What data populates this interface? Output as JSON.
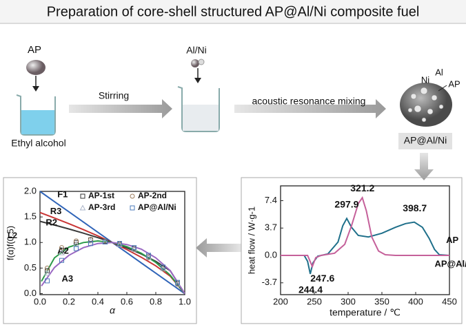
{
  "title": "Preparation of core-shell structured AP@Al/Ni composite fuel",
  "step1": {
    "reagent": "AP",
    "solvent": "Ethyl alcohol"
  },
  "arrow1": "Stirring",
  "step2": {
    "reagent": "Al/Ni"
  },
  "arrow2": "acoustic resonance mixing",
  "product": {
    "labels": [
      "Ni",
      "Al",
      "AP"
    ],
    "name": "AP@Al/Ni"
  },
  "chart_data": [
    {
      "type": "line",
      "xlabel": "α",
      "ylabel": "f(α)f(0.5)",
      "xlim": [
        0,
        1
      ],
      "ylim": [
        -0.02,
        2.0
      ],
      "xticks": [
        {
          "value": 0,
          "label": "0.0"
        },
        0.2,
        0.4,
        0.6,
        0.8,
        {
          "value": 1,
          "label": "1.0"
        }
      ],
      "yticks": [
        {
          "value": 0,
          "label": "0.0"
        },
        0.5,
        {
          "value": 1,
          "label": "1.0"
        },
        1.5,
        {
          "value": 2,
          "label": "2.0"
        }
      ],
      "annotations": [
        "L2"
      ],
      "series": [
        {
          "name": "F1",
          "color": "#2f64b8",
          "style": "line",
          "x": [
            0,
            0.1,
            0.2,
            0.3,
            0.4,
            0.5,
            0.6,
            0.7,
            0.8,
            0.9,
            1.0
          ],
          "values": [
            2,
            1.8,
            1.6,
            1.4,
            1.2,
            1.0,
            0.8,
            0.6,
            0.4,
            0.2,
            0
          ]
        },
        {
          "name": "R3",
          "color": "#c93535",
          "style": "line",
          "x": [
            0,
            0.1,
            0.2,
            0.3,
            0.4,
            0.5,
            0.6,
            0.7,
            0.8,
            0.9,
            1.0
          ],
          "values": [
            1.587,
            1.479,
            1.368,
            1.251,
            1.129,
            1.0,
            0.862,
            0.711,
            0.543,
            0.341,
            0
          ]
        },
        {
          "name": "R2",
          "color": "#3a3a3a",
          "style": "line",
          "x": [
            0,
            0.1,
            0.2,
            0.3,
            0.4,
            0.5,
            0.6,
            0.7,
            0.8,
            0.9,
            1.0
          ],
          "values": [
            1.414,
            1.342,
            1.265,
            1.183,
            1.095,
            1.0,
            0.894,
            0.775,
            0.632,
            0.447,
            0
          ]
        },
        {
          "name": "A2",
          "color": "#2b9a48",
          "style": "line",
          "x": [
            0.01,
            0.1,
            0.2,
            0.3,
            0.4,
            0.5,
            0.6,
            0.7,
            0.8,
            0.9,
            1.0
          ],
          "values": [
            0.24,
            0.7,
            0.91,
            1.0,
            1.03,
            1.0,
            0.92,
            0.79,
            0.61,
            0.36,
            0
          ]
        },
        {
          "name": "A3",
          "color": "#9a68c2",
          "style": "line",
          "x": [
            0.01,
            0.1,
            0.2,
            0.3,
            0.4,
            0.5,
            0.6,
            0.7,
            0.8,
            0.9,
            1.0
          ],
          "values": [
            0.15,
            0.51,
            0.75,
            0.9,
            0.98,
            1.0,
            0.96,
            0.87,
            0.7,
            0.45,
            0
          ]
        },
        {
          "name": "AP-1st",
          "color": "#333333",
          "style": "square",
          "x": [
            0.05,
            0.15,
            0.25,
            0.35,
            0.45,
            0.55,
            0.65,
            0.75,
            0.85,
            0.95
          ],
          "values": [
            0.45,
            0.85,
            1.0,
            1.05,
            1.02,
            0.97,
            0.88,
            0.72,
            0.5,
            0.2
          ]
        },
        {
          "name": "AP-2nd",
          "color": "#9a7a5a",
          "style": "circle",
          "x": [
            0.05,
            0.15,
            0.25,
            0.35,
            0.45,
            0.55,
            0.65,
            0.75,
            0.85,
            0.95
          ],
          "values": [
            0.5,
            0.9,
            1.03,
            1.06,
            1.03,
            0.96,
            0.86,
            0.7,
            0.48,
            0.18
          ]
        },
        {
          "name": "AP-3rd",
          "color": "#aab4c8",
          "style": "triangle",
          "x": [
            0.05,
            0.15,
            0.25,
            0.35,
            0.45,
            0.55,
            0.65,
            0.75,
            0.85,
            0.95
          ],
          "values": [
            0.4,
            0.8,
            0.97,
            1.03,
            1.01,
            0.96,
            0.87,
            0.71,
            0.49,
            0.19
          ]
        },
        {
          "name": "AP@Al/Ni",
          "color": "#4a7ab8",
          "style": "square",
          "x": [
            0.05,
            0.15,
            0.25,
            0.35,
            0.45,
            0.55,
            0.65,
            0.75,
            0.85,
            0.95
          ],
          "values": [
            0.25,
            0.65,
            0.88,
            0.98,
            1.01,
            0.98,
            0.9,
            0.75,
            0.52,
            0.22
          ]
        }
      ]
    },
    {
      "type": "line",
      "xlabel": "temperature / ℃",
      "ylabel": "heat flow / W·g-1",
      "xlim": [
        200,
        450
      ],
      "ylim": [
        -5.3,
        9.4
      ],
      "xticks": [
        200,
        250,
        300,
        350,
        400,
        450
      ],
      "yticks": [
        -3.7,
        {
          "value": 0,
          "label": "0.0"
        },
        3.7,
        7.4
      ],
      "annotations": [
        "297.9",
        "321.2",
        "398.7",
        "247.6",
        "244.4"
      ],
      "series": [
        {
          "name": "AP",
          "color": "#1e6f8a",
          "x": [
            200,
            220,
            235,
            240,
            244,
            248,
            255,
            270,
            285,
            292,
            298,
            305,
            315,
            330,
            350,
            370,
            385,
            398,
            410,
            420,
            428,
            435,
            450
          ],
          "values": [
            0,
            0,
            0,
            -0.8,
            -2.5,
            -1,
            -0.1,
            0.2,
            1.8,
            4,
            5,
            3.8,
            2.7,
            2.5,
            3,
            3.8,
            4.3,
            4.5,
            3.8,
            2.3,
            0.8,
            0.1,
            0
          ]
        },
        {
          "name": "AP@Al/Ni",
          "color": "#c5609a",
          "x": [
            200,
            220,
            240,
            247,
            252,
            260,
            280,
            295,
            305,
            315,
            321,
            327,
            335,
            345,
            355,
            370,
            400,
            450
          ],
          "values": [
            0,
            0,
            0,
            -1.5,
            -0.3,
            0,
            0.3,
            1.5,
            4,
            7,
            7.8,
            6,
            2.5,
            0.6,
            0.1,
            0,
            0,
            0
          ]
        }
      ]
    }
  ]
}
